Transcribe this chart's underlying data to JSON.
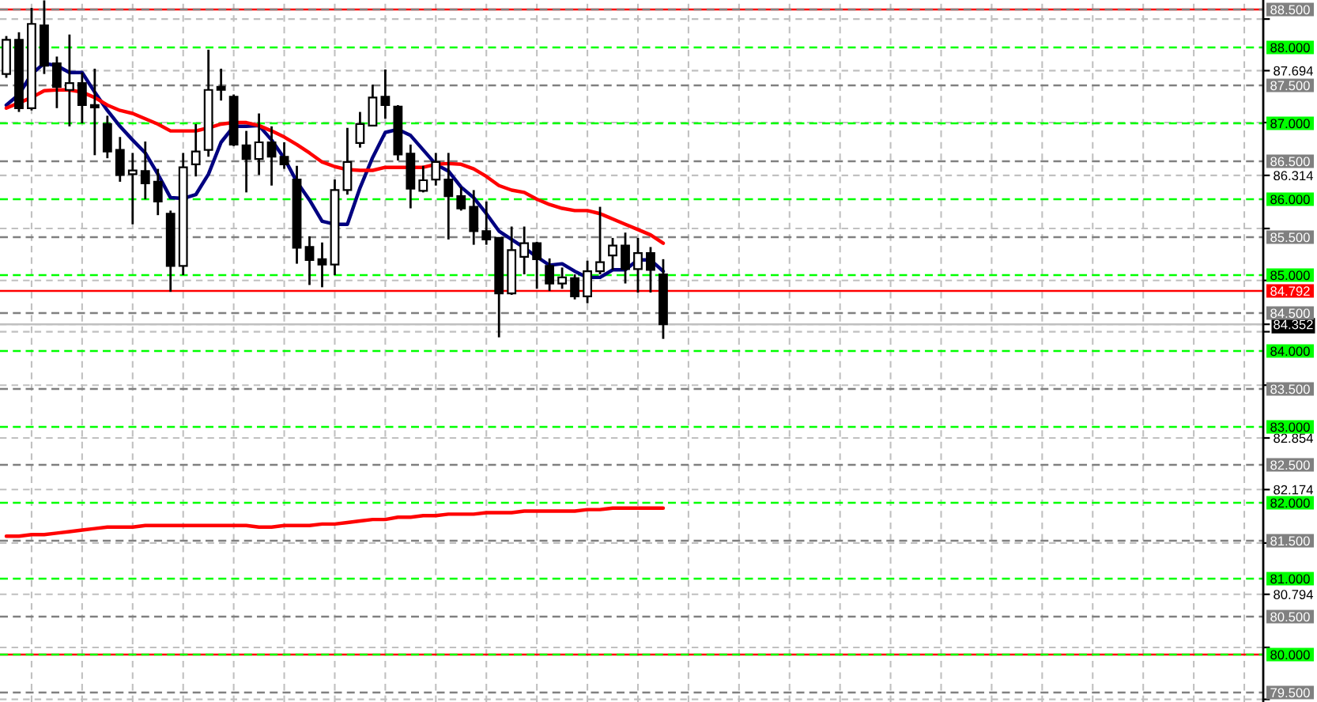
{
  "chart_data": {
    "type": "candlestick",
    "categories": [
      null,
      null,
      null,
      null,
      null,
      null,
      null,
      null,
      null,
      null,
      null,
      null,
      null,
      null,
      null,
      null,
      null,
      null,
      null,
      null,
      null,
      null,
      null,
      null,
      null,
      null,
      null,
      null,
      null,
      null,
      null,
      null,
      null,
      null,
      null,
      null,
      null,
      null,
      null,
      null,
      null,
      null,
      null,
      null,
      null,
      null,
      null,
      null,
      null,
      null,
      null,
      null,
      null,
      null,
      null,
      null,
      null,
      null,
      null,
      null,
      null,
      null,
      null,
      null,
      null,
      null,
      null,
      null,
      null,
      null,
      null,
      null,
      null,
      null,
      null,
      null,
      null,
      null,
      null,
      null,
      null,
      null,
      null,
      null,
      null,
      null,
      null,
      null,
      null,
      null,
      null,
      null,
      null,
      null,
      null,
      null,
      null,
      null,
      null,
      null
    ],
    "ohlc": [
      [
        87.65,
        88.15,
        87.6,
        88.1
      ],
      [
        88.1,
        88.2,
        87.15,
        87.2
      ],
      [
        87.2,
        88.52,
        87.17,
        88.31
      ],
      [
        88.29,
        88.62,
        87.65,
        87.76
      ],
      [
        87.79,
        87.88,
        87.2,
        87.48
      ],
      [
        87.44,
        88.17,
        86.96,
        87.53
      ],
      [
        87.53,
        87.67,
        87.0,
        87.24
      ],
      [
        87.24,
        87.72,
        86.58,
        87.21
      ],
      [
        86.99,
        87.1,
        86.54,
        86.63
      ],
      [
        86.65,
        86.82,
        86.23,
        86.32
      ],
      [
        86.33,
        86.61,
        85.67,
        86.38
      ],
      [
        86.37,
        86.76,
        86.0,
        86.21
      ],
      [
        86.23,
        86.4,
        85.79,
        85.97
      ],
      [
        85.81,
        85.85,
        84.78,
        85.12
      ],
      [
        85.12,
        86.61,
        85.0,
        86.42
      ],
      [
        86.46,
        86.99,
        86.3,
        86.63
      ],
      [
        86.65,
        87.97,
        86.56,
        87.44
      ],
      [
        87.48,
        87.72,
        87.3,
        87.44
      ],
      [
        87.35,
        87.38,
        86.7,
        86.72
      ],
      [
        86.71,
        86.9,
        86.09,
        86.53
      ],
      [
        86.53,
        87.13,
        86.32,
        86.75
      ],
      [
        86.75,
        86.96,
        86.18,
        86.56
      ],
      [
        86.56,
        86.75,
        86.4,
        86.46
      ],
      [
        86.26,
        86.44,
        85.15,
        85.36
      ],
      [
        85.37,
        85.51,
        84.87,
        85.2
      ],
      [
        85.21,
        85.43,
        84.84,
        85.14
      ],
      [
        85.14,
        86.26,
        85.0,
        86.12
      ],
      [
        86.12,
        86.94,
        86.06,
        86.49
      ],
      [
        86.74,
        87.15,
        86.68,
        86.99
      ],
      [
        86.97,
        87.51,
        86.96,
        87.34
      ],
      [
        87.35,
        87.71,
        87.06,
        87.24
      ],
      [
        87.22,
        87.24,
        86.51,
        86.59
      ],
      [
        86.6,
        86.72,
        85.88,
        86.14
      ],
      [
        86.11,
        86.44,
        86.09,
        86.25
      ],
      [
        86.26,
        86.61,
        86.18,
        86.49
      ],
      [
        86.26,
        86.61,
        85.47,
        86.04
      ],
      [
        86.04,
        86.16,
        85.85,
        85.88
      ],
      [
        85.9,
        86.12,
        85.4,
        85.58
      ],
      [
        85.58,
        85.97,
        85.4,
        85.47
      ],
      [
        85.49,
        85.49,
        84.18,
        84.76
      ],
      [
        84.76,
        85.64,
        84.74,
        85.33
      ],
      [
        85.24,
        85.64,
        85.01,
        85.42
      ],
      [
        85.42,
        85.44,
        84.82,
        85.21
      ],
      [
        85.12,
        85.22,
        84.79,
        84.89
      ],
      [
        84.89,
        85.1,
        84.82,
        84.97
      ],
      [
        84.96,
        85.01,
        84.68,
        84.72
      ],
      [
        84.72,
        85.19,
        84.63,
        85.05
      ],
      [
        85.05,
        85.9,
        85.01,
        85.17
      ],
      [
        85.26,
        85.49,
        85.07,
        85.39
      ],
      [
        85.39,
        85.56,
        84.89,
        85.08
      ],
      [
        85.08,
        85.49,
        84.77,
        85.29
      ],
      [
        85.29,
        85.37,
        84.77,
        85.07
      ],
      [
        85.01,
        85.21,
        84.16,
        84.352
      ],
      null,
      null,
      null,
      null,
      null,
      null,
      null,
      null,
      null,
      null,
      null,
      null,
      null,
      null,
      null,
      null,
      null,
      null,
      null,
      null,
      null,
      null,
      null,
      null,
      null,
      null,
      null,
      null,
      null,
      null,
      null,
      null,
      null,
      null,
      null,
      null,
      null,
      null,
      null,
      null,
      null,
      null,
      null,
      null,
      null,
      null,
      null
    ],
    "colors": [
      "#ffffff",
      "#000000",
      "#ffffff",
      "#000000",
      "#000000",
      "#ffffff",
      "#000000",
      "#000000",
      "#000000",
      "#000000",
      "#ffffff",
      "#000000",
      "#000000",
      "#000000",
      "#ffffff",
      "#ffffff",
      "#ffffff",
      "#000000",
      "#000000",
      "#000000",
      "#ffffff",
      "#000000",
      "#000000",
      "#000000",
      "#000000",
      "#000000",
      "#ffffff",
      "#ffffff",
      "#ffffff",
      "#ffffff",
      "#000000",
      "#000000",
      "#000000",
      "#ffffff",
      "#ffffff",
      "#000000",
      "#000000",
      "#000000",
      "#000000",
      "#000000",
      "#ffffff",
      "#ffffff",
      "#000000",
      "#000000",
      "#ffffff",
      "#000000",
      "#ffffff",
      "#ffffff",
      "#ffffff",
      "#000000",
      "#ffffff",
      "#000000",
      "#000000",
      null,
      null,
      null,
      null,
      null,
      null,
      null,
      null,
      null,
      null,
      null,
      null,
      null,
      null,
      null,
      null,
      null,
      null,
      null,
      null,
      null,
      null,
      null,
      null,
      null,
      null,
      null,
      null,
      null,
      null,
      null,
      null,
      null,
      null,
      null,
      null,
      null,
      null,
      null,
      null,
      null,
      null,
      null,
      null,
      null,
      null,
      null
    ],
    "series": [
      {
        "type": "line",
        "color": "#000080",
        "values": [
          87.24,
          87.38,
          87.65,
          87.79,
          87.76,
          87.67,
          87.67,
          87.41,
          87.17,
          86.96,
          86.78,
          86.61,
          86.33,
          86.02,
          86.01,
          86.06,
          86.33,
          86.75,
          86.96,
          86.96,
          86.97,
          86.78,
          86.54,
          86.23,
          85.99,
          85.71,
          85.67,
          85.67,
          86.15,
          86.55,
          86.88,
          86.92,
          86.84,
          86.65,
          86.46,
          86.37,
          86.16,
          86.02,
          85.81,
          85.58,
          85.47,
          85.36,
          85.24,
          85.13,
          85.15,
          85.05,
          84.97,
          84.97,
          85.07,
          85.07,
          85.2,
          85.2,
          85.05,
          null,
          null,
          null,
          null,
          null,
          null,
          null,
          null,
          null,
          null,
          null,
          null,
          null,
          null,
          null,
          null,
          null,
          null,
          null,
          null,
          null,
          null,
          null,
          null,
          null,
          null,
          null,
          null,
          null,
          null,
          null,
          null,
          null,
          null,
          null,
          null,
          null,
          null,
          null,
          null,
          null,
          null,
          null,
          null,
          null,
          null,
          null
        ]
      },
      {
        "type": "line",
        "color": "#ff0000",
        "values": [
          87.2,
          87.27,
          87.34,
          87.43,
          87.44,
          87.44,
          87.41,
          87.34,
          87.24,
          87.17,
          87.13,
          87.06,
          86.99,
          86.9,
          86.9,
          86.9,
          86.94,
          86.99,
          87.01,
          87.01,
          86.97,
          86.9,
          86.82,
          86.72,
          86.61,
          86.49,
          86.43,
          86.39,
          86.38,
          86.38,
          86.42,
          86.42,
          86.42,
          86.42,
          86.46,
          86.47,
          86.46,
          86.4,
          86.3,
          86.18,
          86.12,
          86.09,
          86.0,
          85.93,
          85.88,
          85.85,
          85.85,
          85.81,
          85.74,
          85.67,
          85.6,
          85.53,
          85.42,
          null,
          null,
          null,
          null,
          null,
          null,
          null,
          null,
          null,
          null,
          null,
          null,
          null,
          null,
          null,
          null,
          null,
          null,
          null,
          null,
          null,
          null,
          null,
          null,
          null,
          null,
          null,
          null,
          null,
          null,
          null,
          null,
          null,
          null,
          null,
          null,
          null,
          null,
          null,
          null,
          null,
          null,
          null,
          null,
          null,
          null,
          null
        ]
      },
      {
        "type": "line",
        "color": "#ff0000",
        "values": [
          81.56,
          81.56,
          81.58,
          81.58,
          81.6,
          81.62,
          81.64,
          81.66,
          81.68,
          81.68,
          81.68,
          81.7,
          81.7,
          81.7,
          81.7,
          81.7,
          81.7,
          81.7,
          81.7,
          81.7,
          81.68,
          81.68,
          81.7,
          81.7,
          81.7,
          81.72,
          81.72,
          81.74,
          81.76,
          81.78,
          81.78,
          81.81,
          81.81,
          81.83,
          81.83,
          81.85,
          81.85,
          81.85,
          81.87,
          81.87,
          81.87,
          81.89,
          81.89,
          81.89,
          81.89,
          81.89,
          81.91,
          81.91,
          81.93,
          81.93,
          81.93,
          81.93,
          81.93,
          null,
          null,
          null,
          null,
          null,
          null,
          null,
          null,
          null,
          null,
          null,
          null,
          null,
          null,
          null,
          null,
          null,
          null,
          null,
          null,
          null,
          null,
          null,
          null,
          null,
          null,
          null,
          null,
          null,
          null,
          null,
          null,
          null,
          null,
          null,
          null,
          null,
          null,
          null,
          null,
          null,
          null,
          null,
          null,
          null,
          null,
          null
        ]
      }
    ],
    "ylim": [
      79.375,
      88.625
    ],
    "yticks": [
      {
        "value": 88.374,
        "label": null
      },
      87.694,
      {
        "value": 87.01,
        "label": null
      },
      86.314,
      {
        "value": 85.614,
        "label": null
      },
      {
        "value": 84.93,
        "label": null
      },
      84.352,
      {
        "value": 84.254,
        "label": null
      },
      {
        "value": 83.55,
        "label": null
      },
      82.854,
      82.174,
      {
        "value": 81.47,
        "label": null
      },
      80.794,
      {
        "value": 80.094,
        "label": null
      },
      {
        "value": 79.41,
        "label": null
      }
    ],
    "tick_labels": "y",
    "grid": true,
    "ref_lines": [
      {
        "axis": "y",
        "value": 88.5,
        "color": "#ff0000",
        "line_style": "solid"
      },
      {
        "axis": "y",
        "value": 88.5,
        "label": "88.500",
        "color": "#808080",
        "line_style": "dashed"
      },
      {
        "axis": "y",
        "value": 88.0,
        "label": "88.000",
        "color": "#00ff00",
        "line_style": "dashed"
      },
      {
        "axis": "y",
        "value": 87.5,
        "label": "87.500",
        "color": "#808080",
        "line_style": "dashed"
      },
      {
        "axis": "y",
        "value": 87.0,
        "label": "87.000",
        "color": "#00ff00",
        "line_style": "dashed"
      },
      {
        "axis": "y",
        "value": 86.5,
        "label": "86.500",
        "color": "#808080",
        "line_style": "dashed"
      },
      {
        "axis": "y",
        "value": 86.0,
        "label": "86.000",
        "color": "#00ff00",
        "line_style": "dashed"
      },
      {
        "axis": "y",
        "value": 85.5,
        "label": "85.500",
        "color": "#808080",
        "line_style": "dashed"
      },
      {
        "axis": "y",
        "value": 85.0,
        "label": "85.000",
        "color": "#00ff00",
        "line_style": "dashed"
      },
      {
        "axis": "y",
        "value": 84.5,
        "label": "84.500",
        "color": "#808080",
        "line_style": "dashed"
      },
      {
        "axis": "y",
        "value": 84.0,
        "label": "84.000",
        "color": "#00ff00",
        "line_style": "dashed"
      },
      {
        "axis": "y",
        "value": 83.5,
        "label": "83.500",
        "color": "#808080",
        "line_style": "dashed"
      },
      {
        "axis": "y",
        "value": 83.0,
        "label": "83.000",
        "color": "#00ff00",
        "line_style": "dashed"
      },
      {
        "axis": "y",
        "value": 82.5,
        "label": "82.500",
        "color": "#808080",
        "line_style": "dashed"
      },
      {
        "axis": "y",
        "value": 82.0,
        "label": "82.000",
        "color": "#00ff00",
        "line_style": "dashed"
      },
      {
        "axis": "y",
        "value": 81.5,
        "label": "81.500",
        "color": "#808080",
        "line_style": "dashed"
      },
      {
        "axis": "y",
        "value": 81.0,
        "label": "81.000",
        "color": "#00ff00",
        "line_style": "dashed"
      },
      {
        "axis": "y",
        "value": 80.5,
        "label": "80.500",
        "color": "#808080",
        "line_style": "dashed"
      },
      {
        "axis": "y",
        "value": 80.0,
        "color": "#ff0000",
        "line_style": "solid"
      },
      {
        "axis": "y",
        "value": 80.0,
        "label": "80.000",
        "color": "#00ff00",
        "line_style": "dashed"
      },
      {
        "axis": "y",
        "value": 79.5,
        "label": "79.500",
        "color": "#808080",
        "line_style": "dashed"
      },
      {
        "axis": "y",
        "value": 84.352,
        "color": "#c0c0c0",
        "line_style": "solid"
      },
      {
        "axis": "y",
        "value": 84.792,
        "label": "84.792",
        "color": "#ff0000",
        "line_style": "solid"
      }
    ]
  }
}
